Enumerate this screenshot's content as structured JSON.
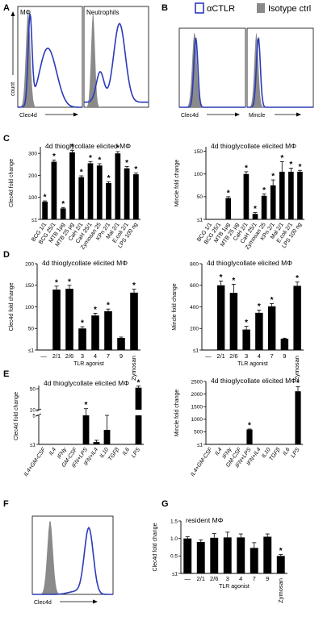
{
  "panel_labels": [
    "A",
    "B",
    "C",
    "D",
    "E",
    "F",
    "G"
  ],
  "legend": {
    "items": [
      {
        "label": "αCTLR",
        "color": "#2b3bb8",
        "kind": "outline"
      },
      {
        "label": "Isotype ctrl",
        "color": "#8a8a8a",
        "kind": "fill"
      }
    ]
  },
  "colors": {
    "series": "#000000",
    "ctlr_line": "#2b3bb8",
    "isotype": "#8a8a8a"
  },
  "chart_data": [
    {
      "id": "A-left",
      "panel": "A",
      "type": "histogram",
      "inset_label": "MΦ",
      "ylabel": "count",
      "xlabel": "Clec4d",
      "isotype_color": "#8a8a8a",
      "ctlr_color": "#2b3bb8"
    },
    {
      "id": "A-right",
      "panel": "A",
      "type": "histogram",
      "inset_label": "Neutrophils",
      "ylabel": "",
      "xlabel": "",
      "isotype_color": "#8a8a8a",
      "ctlr_color": "#2b3bb8"
    },
    {
      "id": "B-left",
      "panel": "B",
      "type": "histogram",
      "inset_label": "",
      "ylabel": "",
      "xlabel": "Clec4d",
      "isotype_color": "#8a8a8a",
      "ctlr_color": "#2b3bb8"
    },
    {
      "id": "B-right",
      "panel": "B",
      "type": "histogram",
      "inset_label": "",
      "ylabel": "",
      "xlabel": "Mincle",
      "isotype_color": "#8a8a8a",
      "ctlr_color": "#2b3bb8"
    },
    {
      "id": "C-left",
      "panel": "C",
      "type": "bar",
      "title": "4d thioglycollate elicited MΦ",
      "ylabel": "Clec4d fold change",
      "yticks": [
        "≤1",
        "100",
        "200",
        "300"
      ],
      "ytick_values": [
        0,
        100,
        200,
        300
      ],
      "ylim": [
        0,
        330
      ],
      "categories": [
        "BCG 1/1",
        "BCG 25/1",
        "MTB 1μg",
        "MTB 25 μg",
        "CaH 2/1",
        "CaH 25/1",
        "Zymosan 25",
        "KPn 2/1",
        "Mal 2/1",
        "E.coli 2/1",
        "LPS 100 ng"
      ],
      "values": [
        80,
        262,
        50,
        305,
        192,
        255,
        245,
        165,
        300,
        232,
        205
      ],
      "errors": [
        4,
        8,
        4,
        8,
        6,
        8,
        8,
        6,
        8,
        8,
        6
      ],
      "significant": [
        true,
        true,
        true,
        true,
        true,
        true,
        true,
        true,
        true,
        true,
        true
      ]
    },
    {
      "id": "C-right",
      "panel": "C",
      "type": "bar",
      "title": "4d thioglycollate elicited MΦ",
      "ylabel": "Mincle fold change",
      "yticks": [
        "≤1",
        "50",
        "100",
        "150"
      ],
      "ytick_values": [
        0,
        50,
        100,
        150
      ],
      "ylim": [
        0,
        160
      ],
      "categories": [
        "BCG 1/1",
        "BCG 25/1",
        "MTB 1μg",
        "MTB 25 μg",
        "CaH 2/1",
        "CaH 25/1",
        "Zymosan 25",
        "KPn 2/1",
        "Mal 2/1",
        "E.coli 2/1",
        "LPS 100 ng"
      ],
      "values": [
        0,
        0,
        47,
        0,
        100,
        12,
        52,
        75,
        105,
        105,
        105
      ],
      "errors": [
        0,
        0,
        3,
        0,
        5,
        3,
        4,
        12,
        22,
        8,
        3
      ],
      "significant": [
        false,
        false,
        true,
        false,
        true,
        true,
        true,
        true,
        true,
        true,
        true
      ]
    },
    {
      "id": "D-left",
      "panel": "D",
      "type": "bar",
      "title": "4d thioglycollate elicited MΦ",
      "ylabel": "Clec4d fold change",
      "xlabel": "TLR agonist",
      "yticks": [
        "≤1",
        "50",
        "100",
        "150",
        "200"
      ],
      "ytick_values": [
        0,
        50,
        100,
        150,
        200
      ],
      "ylim": [
        0,
        200
      ],
      "categories": [
        "—",
        "2/1",
        "2/6",
        "3",
        "4",
        "7",
        "9",
        "Zymosan"
      ],
      "values": [
        0,
        140,
        142,
        50,
        80,
        90,
        28,
        133
      ],
      "errors": [
        0,
        8,
        8,
        4,
        5,
        5,
        2,
        8
      ],
      "significant": [
        false,
        true,
        true,
        true,
        true,
        true,
        false,
        true
      ]
    },
    {
      "id": "D-right",
      "panel": "D",
      "type": "bar",
      "title": "4d thioglycollate elicited MΦ",
      "ylabel": "Mincle fold change",
      "xlabel": "TLR agonist",
      "yticks": [
        "≤1",
        "200",
        "400",
        "600",
        "800"
      ],
      "ytick_values": [
        0,
        200,
        400,
        600,
        800
      ],
      "ylim": [
        0,
        800
      ],
      "categories": [
        "—",
        "2/1",
        "2/6",
        "3",
        "4",
        "7",
        "9",
        "Zymosan"
      ],
      "values": [
        0,
        600,
        530,
        190,
        345,
        405,
        105,
        595
      ],
      "errors": [
        0,
        40,
        80,
        30,
        25,
        25,
        5,
        35
      ],
      "significant": [
        false,
        true,
        true,
        true,
        true,
        true,
        false,
        true
      ]
    },
    {
      "id": "E-left",
      "panel": "E",
      "type": "bar",
      "broken_axis": true,
      "title": "4d thioglycollate elicited MΦ",
      "ylabel": "Clec4d fold change",
      "yticks_lower": [
        "≤1",
        "5"
      ],
      "yticks_upper": [
        "10",
        "50"
      ],
      "categories": [
        "IL4+GM-CSF",
        "IL4",
        "IFNγ",
        "GM-CSF",
        "IFN+LPS",
        "IFN+IL4",
        "IL10",
        "TGFβ",
        "IL6",
        "LPS"
      ],
      "values": [
        0,
        0,
        0,
        0,
        10,
        0.4,
        2.5,
        0,
        0,
        52
      ],
      "errors": [
        0,
        0,
        0,
        0,
        2,
        0.3,
        2.6,
        0,
        0,
        3
      ],
      "significant": [
        false,
        false,
        false,
        false,
        true,
        false,
        false,
        false,
        false,
        true
      ]
    },
    {
      "id": "E-right",
      "panel": "E",
      "type": "bar",
      "title": "4d thioglycollate elicited MΦ",
      "ylabel": "Mincle fold change",
      "yticks": [
        "≤1",
        "500",
        "1000",
        "1500",
        "2000",
        "2500"
      ],
      "ytick_values": [
        0,
        500,
        1000,
        1500,
        2000,
        2500
      ],
      "ylim": [
        0,
        2500
      ],
      "categories": [
        "IL4+GM-CSF",
        "IL4",
        "IFNγ",
        "GM-CSF",
        "IFN+LPS",
        "IFN+IL4",
        "IL10",
        "TGFβ",
        "IL6",
        "LPS"
      ],
      "values": [
        0,
        0,
        0,
        0,
        590,
        0,
        0,
        0,
        0,
        2110
      ],
      "errors": [
        0,
        0,
        0,
        0,
        20,
        0,
        0,
        0,
        0,
        180
      ],
      "significant": [
        false,
        false,
        false,
        false,
        true,
        false,
        false,
        false,
        false,
        true
      ]
    },
    {
      "id": "F",
      "panel": "F",
      "type": "histogram",
      "inset_label": "",
      "ylabel": "",
      "xlabel": "Clec4d",
      "isotype_color": "#8a8a8a",
      "ctlr_color": "#2b3bb8"
    },
    {
      "id": "G",
      "panel": "G",
      "type": "bar",
      "title": "resident MΦ",
      "ylabel": "Clec4d fold change",
      "xlabel": "TLR agonist",
      "yticks": [
        "≤1",
        "0.5",
        "1.0",
        "1.5"
      ],
      "ytick_values": [
        0,
        0.5,
        1.0,
        1.5
      ],
      "ylim": [
        0,
        1.5
      ],
      "categories": [
        "—",
        "2/1",
        "2/6",
        "3",
        "4",
        "7",
        "9",
        "Zymosan"
      ],
      "values": [
        1.0,
        0.9,
        1.02,
        1.03,
        1.03,
        0.73,
        1.05,
        0.5
      ],
      "errors": [
        0.05,
        0.06,
        0.12,
        0.15,
        0.1,
        0.15,
        0.08,
        0.04
      ],
      "significant": [
        false,
        false,
        false,
        false,
        false,
        false,
        false,
        true
      ]
    }
  ]
}
